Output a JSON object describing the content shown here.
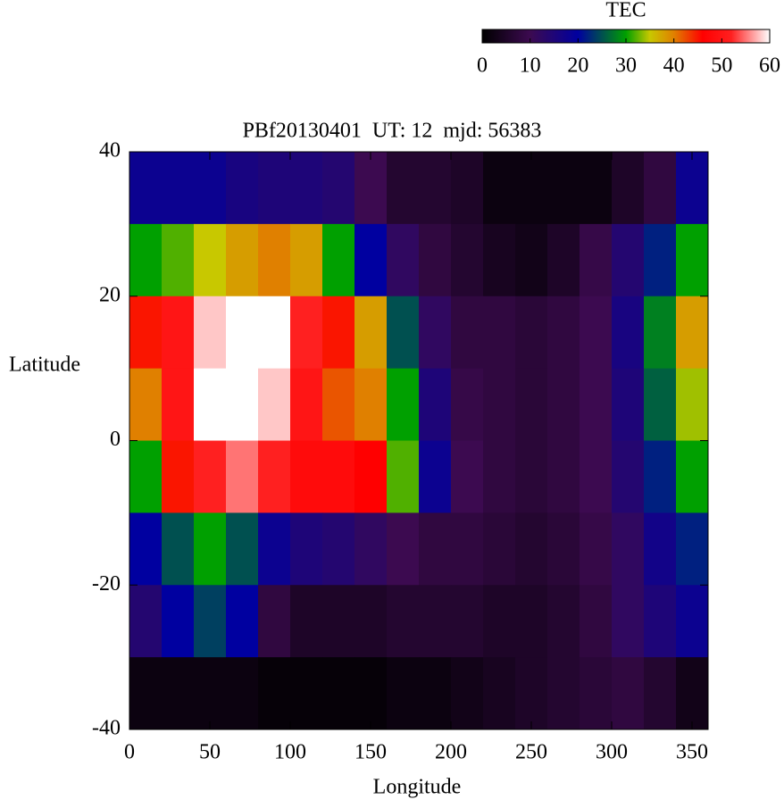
{
  "chart_data": {
    "type": "heatmap",
    "title": "PBf20130401  UT: 12  mjd: 56383",
    "xlabel": "Longitude",
    "ylabel": "Latitude",
    "colorbar_title": "TEC",
    "xlim": [
      0,
      360
    ],
    "ylim": [
      -40,
      40
    ],
    "xticks": [
      0,
      50,
      100,
      150,
      200,
      250,
      300,
      350
    ],
    "yticks": [
      -40,
      -20,
      0,
      20,
      40
    ],
    "zlim": [
      0,
      60
    ],
    "zticks": [
      0,
      10,
      20,
      30,
      40,
      50,
      60
    ],
    "colorscale": [
      {
        "value": 0,
        "color": "#000000"
      },
      {
        "value": 10,
        "color": "#3c0a50"
      },
      {
        "value": 20,
        "color": "#0000a0"
      },
      {
        "value": 30,
        "color": "#00a000"
      },
      {
        "value": 35,
        "color": "#c8c800"
      },
      {
        "value": 40,
        "color": "#e08000"
      },
      {
        "value": 46,
        "color": "#ff0000"
      },
      {
        "value": 52,
        "color": "#ff2020"
      },
      {
        "value": 60,
        "color": "#ffffff"
      }
    ],
    "x": [
      10,
      30,
      50,
      70,
      90,
      110,
      130,
      150,
      170,
      190,
      210,
      230,
      250,
      270,
      290,
      310,
      330,
      350
    ],
    "y": [
      35,
      25,
      15,
      5,
      -5,
      -15,
      -25,
      -35
    ],
    "z": [
      [
        18,
        18,
        18,
        16,
        15,
        15,
        14,
        10,
        6,
        6,
        5,
        2,
        2,
        2,
        2,
        5,
        8,
        18
      ],
      [
        30,
        32,
        35,
        38,
        40,
        38,
        30,
        20,
        12,
        8,
        6,
        4,
        3,
        5,
        9,
        14,
        22,
        30
      ],
      [
        45,
        50,
        58,
        60,
        60,
        52,
        45,
        38,
        25,
        12,
        8,
        8,
        7,
        8,
        10,
        16,
        28,
        38
      ],
      [
        40,
        50,
        60,
        60,
        58,
        50,
        42,
        40,
        30,
        15,
        9,
        8,
        7,
        8,
        10,
        15,
        26,
        34
      ],
      [
        30,
        45,
        52,
        55,
        52,
        48,
        48,
        46,
        32,
        18,
        10,
        8,
        7,
        8,
        10,
        14,
        22,
        30
      ],
      [
        20,
        25,
        30,
        25,
        18,
        15,
        14,
        12,
        10,
        8,
        8,
        7,
        6,
        7,
        9,
        12,
        17,
        22
      ],
      [
        14,
        20,
        24,
        20,
        8,
        5,
        5,
        5,
        6,
        6,
        6,
        5,
        5,
        6,
        8,
        12,
        15,
        18
      ],
      [
        2,
        2,
        2,
        2,
        1,
        1,
        1,
        1,
        2,
        2,
        3,
        4,
        5,
        6,
        7,
        8,
        6,
        3
      ]
    ]
  }
}
